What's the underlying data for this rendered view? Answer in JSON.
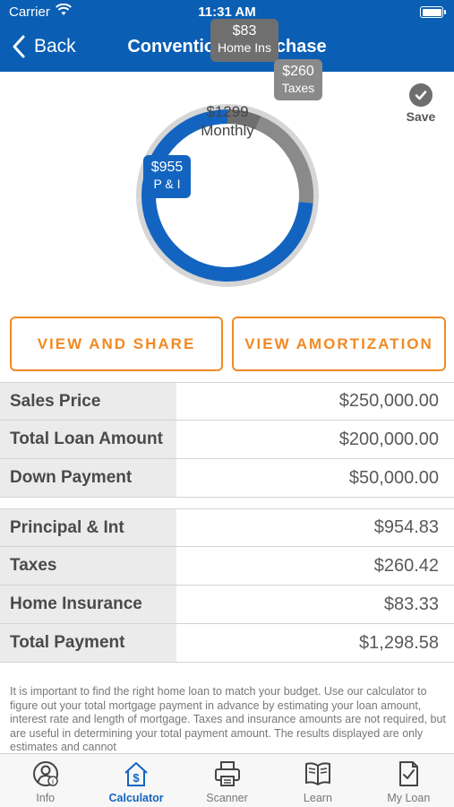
{
  "status_bar": {
    "carrier": "Carrier",
    "time": "11:31 AM"
  },
  "nav": {
    "back_label": "Back",
    "title": "Conventional Purchase"
  },
  "chart_data": {
    "type": "pie",
    "center_amount": "$1299",
    "center_label": "Monthly",
    "slices": [
      {
        "name": "Home Ins",
        "value": 83,
        "label": "$83",
        "color": "#6f6f6f"
      },
      {
        "name": "Taxes",
        "value": 260,
        "label": "$260",
        "color": "#8a8a8a"
      },
      {
        "name": "P & I",
        "value": 955,
        "label": "$955",
        "color": "#1364c0"
      }
    ]
  },
  "save": {
    "label": "Save"
  },
  "buttons": {
    "view_share": "VIEW AND SHARE",
    "view_amortization": "VIEW AMORTIZATION"
  },
  "loan_table": [
    {
      "label": "Sales Price",
      "value": "$250,000.00"
    },
    {
      "label": "Total Loan Amount",
      "value": "$200,000.00"
    },
    {
      "label": "Down Payment",
      "value": "$50,000.00"
    }
  ],
  "payment_table": [
    {
      "label": "Principal & Int",
      "value": "$954.83"
    },
    {
      "label": "Taxes",
      "value": "$260.42"
    },
    {
      "label": "Home Insurance",
      "value": "$83.33"
    },
    {
      "label": "Total Payment",
      "value": "$1,298.58"
    }
  ],
  "disclaimer": "It is important to find the right home loan to match your budget. Use our calculator to figure out your total mortgage payment in advance by estimating your loan amount, interest rate and length of mortgage. Taxes and insurance amounts are not required, but are useful in determining your total payment amount.  The results displayed are only estimates and cannot",
  "tabs": [
    {
      "label": "Info",
      "icon": "info-person-icon"
    },
    {
      "label": "Calculator",
      "icon": "house-dollar-icon"
    },
    {
      "label": "Scanner",
      "icon": "printer-icon"
    },
    {
      "label": "Learn",
      "icon": "book-icon"
    },
    {
      "label": "My Loan",
      "icon": "checklist-document-icon"
    }
  ],
  "colors": {
    "brand_blue": "#0a5fb4",
    "accent_orange": "#f08a24",
    "pi_blue": "#1364c0"
  }
}
